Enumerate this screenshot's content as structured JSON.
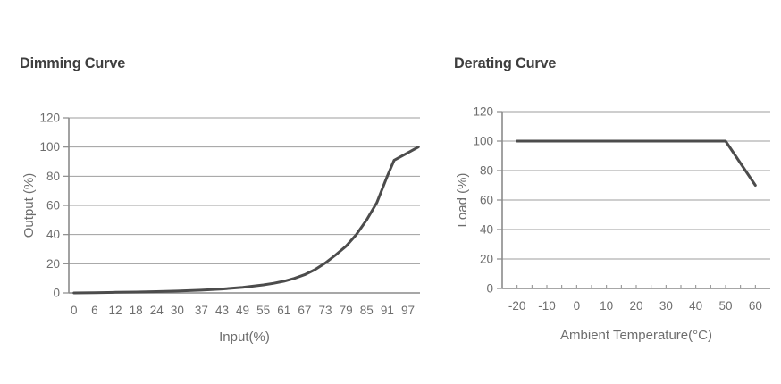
{
  "style": {
    "background": "#ffffff",
    "line_color": "#4c4c4c",
    "grid_color": "#9e9e9e",
    "axis_color": "#8a8a8a",
    "tick_text_color": "#6d6d6d",
    "title_color": "#3e3e3e"
  },
  "chart_data": [
    {
      "type": "line",
      "title": "Dimming Curve",
      "xlabel": "Input(%)",
      "ylabel": "Output (%)",
      "x_ticks": [
        0,
        6,
        12,
        18,
        24,
        30,
        37,
        43,
        49,
        55,
        61,
        67,
        73,
        79,
        85,
        91,
        97
      ],
      "y_ticks": [
        0,
        20,
        40,
        60,
        80,
        100,
        120
      ],
      "xlim": [
        -1.5,
        100.5
      ],
      "ylim": [
        0,
        120
      ],
      "grid": "horizontal",
      "legend": "none",
      "minor_x_tick_step": 0,
      "series": [
        {
          "name": "output-vs-input",
          "points": [
            [
              0,
              0
            ],
            [
              6,
              0.2
            ],
            [
              12,
              0.4
            ],
            [
              18,
              0.6
            ],
            [
              24,
              0.9
            ],
            [
              30,
              1.3
            ],
            [
              37,
              1.9
            ],
            [
              43,
              2.7
            ],
            [
              49,
              3.8
            ],
            [
              55,
              5.5
            ],
            [
              58,
              6.6
            ],
            [
              61,
              8
            ],
            [
              64,
              10
            ],
            [
              67,
              12.5
            ],
            [
              70,
              16
            ],
            [
              73,
              20.5
            ],
            [
              76,
              26
            ],
            [
              79,
              32
            ],
            [
              82,
              40
            ],
            [
              85,
              50
            ],
            [
              88,
              62
            ],
            [
              91,
              80
            ],
            [
              93,
              91
            ],
            [
              100,
              100
            ]
          ]
        }
      ]
    },
    {
      "type": "line",
      "title": "Derating Curve",
      "xlabel": "Ambient Temperature(°C)",
      "ylabel": "Load (%)",
      "x_ticks": [
        -20,
        -10,
        0,
        10,
        20,
        30,
        40,
        50,
        60
      ],
      "y_ticks": [
        0,
        20,
        40,
        60,
        80,
        100,
        120
      ],
      "xlim": [
        -25,
        65
      ],
      "ylim": [
        0,
        120
      ],
      "grid": "horizontal",
      "legend": "none",
      "minor_x_tick_step": 5,
      "series": [
        {
          "name": "load-vs-ambient-temperature",
          "points": [
            [
              -20,
              100
            ],
            [
              50,
              100
            ],
            [
              60,
              70
            ]
          ]
        }
      ]
    }
  ]
}
